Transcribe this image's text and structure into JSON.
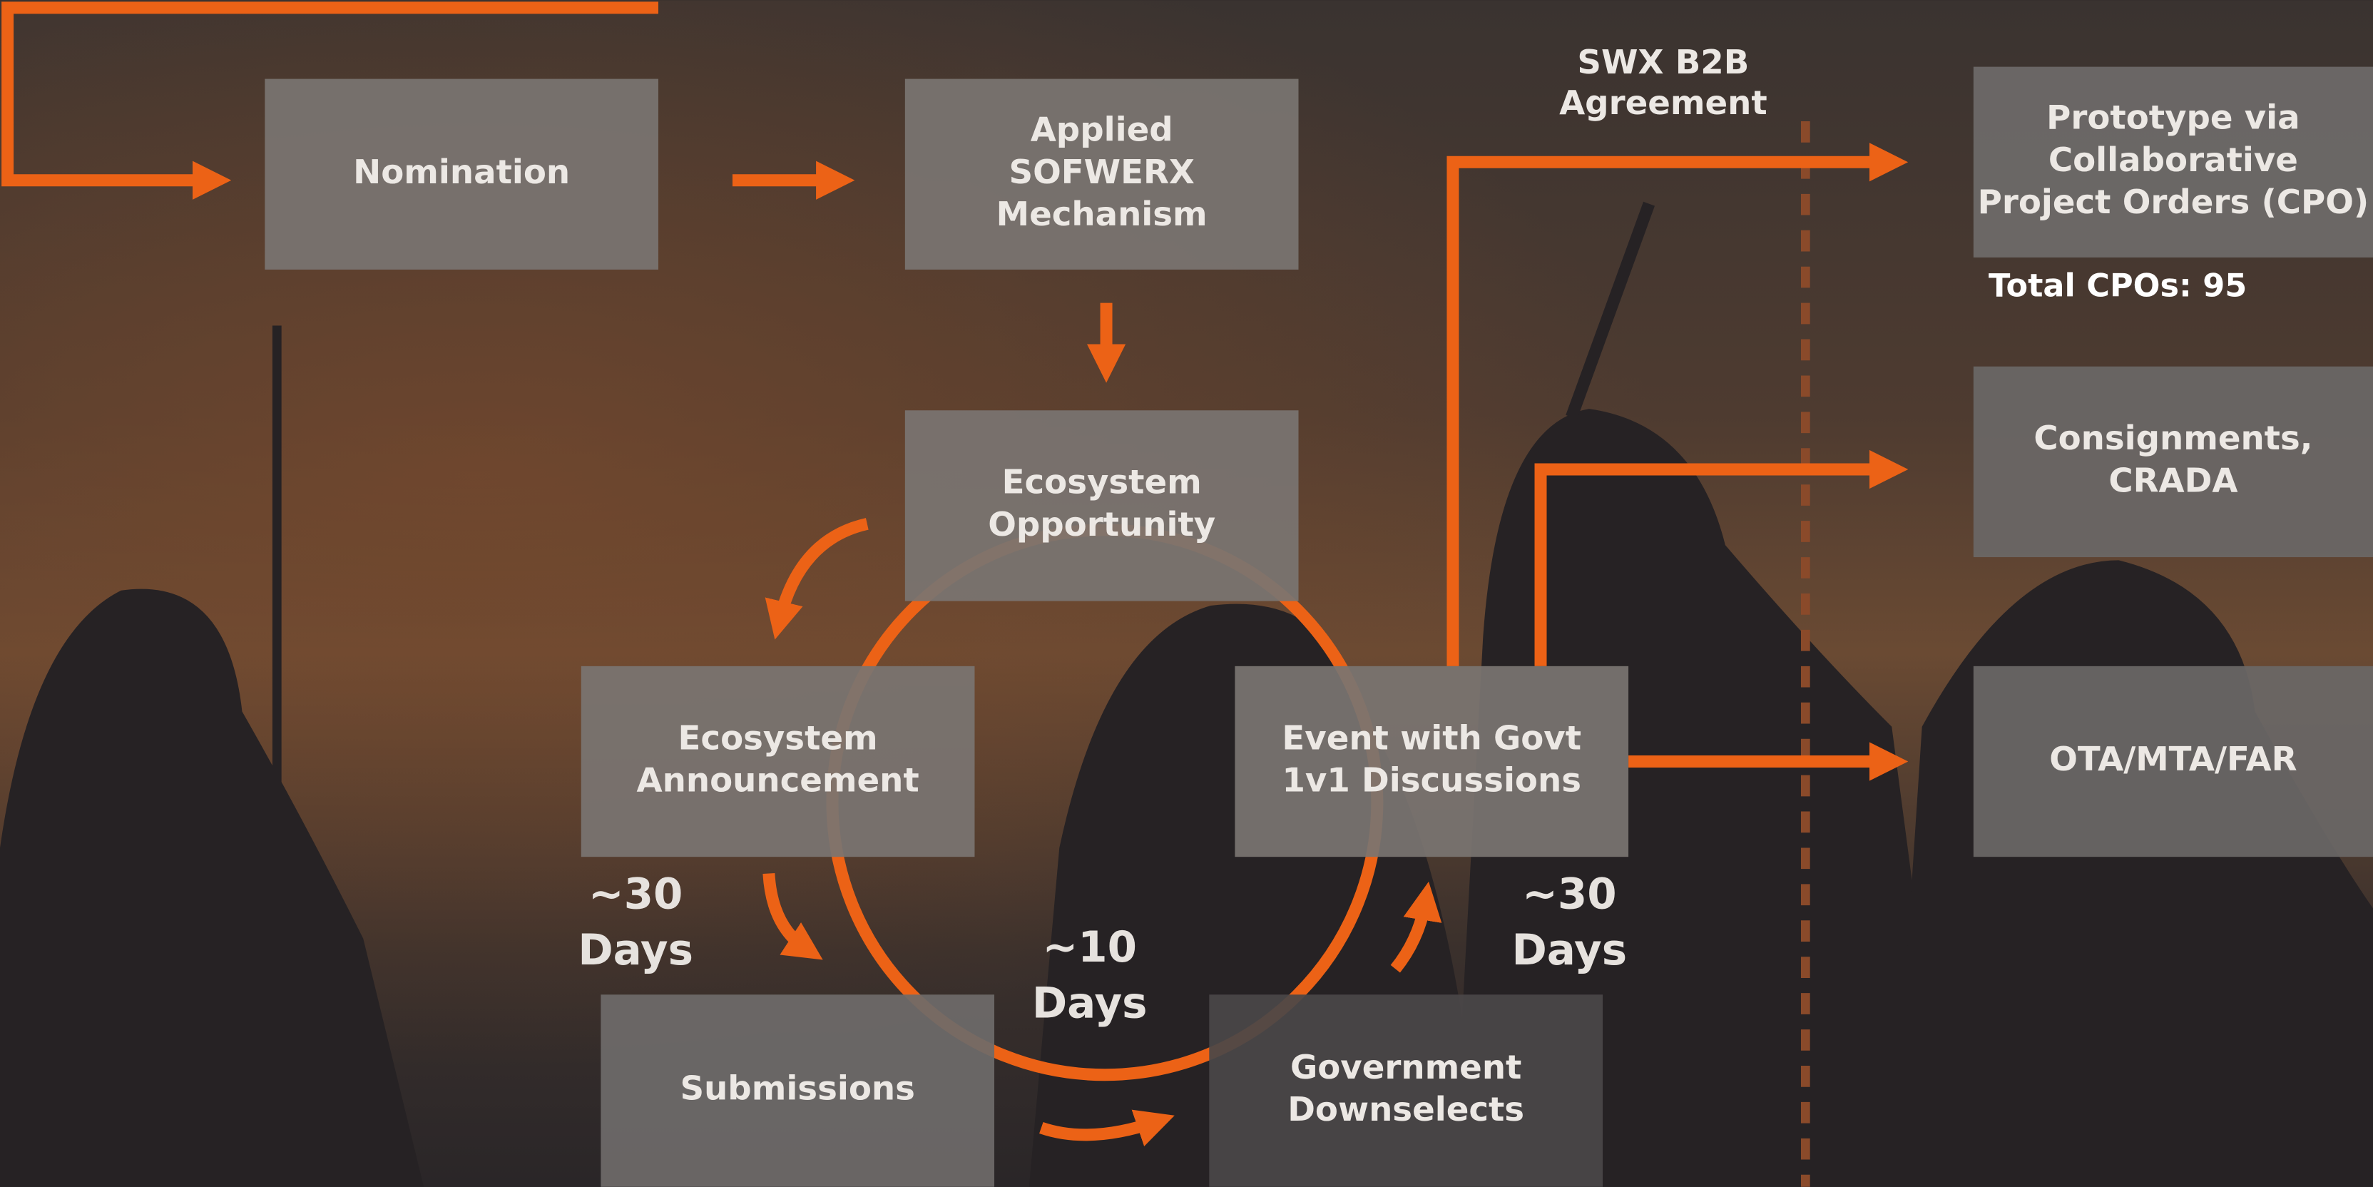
{
  "nodes": [
    {
      "lines": [
        "Nomination"
      ]
    },
    {
      "lines": [
        "Applied",
        "SOFWERX",
        "Mechanism"
      ]
    },
    {
      "lines": [
        "Ecosystem",
        "Opportunity"
      ]
    },
    {
      "lines": [
        "Ecosystem",
        "Announcement"
      ]
    },
    {
      "lines": [
        "Event with Govt",
        "1v1 Discussions"
      ]
    },
    {
      "lines": [
        "Submissions"
      ]
    },
    {
      "lines": [
        "Government",
        "Downselects"
      ]
    },
    {
      "lines": [
        "Prototype via",
        "Collaborative",
        "Project Orders (CPO)"
      ]
    },
    {
      "lines": [
        "Consignments,",
        "CRADA"
      ]
    },
    {
      "lines": [
        "OTA/MTA/FAR"
      ]
    }
  ],
  "agreement": {
    "lines": [
      "SWX B2B",
      "Agreement"
    ]
  },
  "total_cpos": "Total CPOs: 95",
  "durations": [
    {
      "lines": [
        "~30",
        "Days"
      ]
    },
    {
      "lines": [
        "~10",
        "Days"
      ]
    },
    {
      "lines": [
        "~30",
        "Days"
      ]
    }
  ]
}
